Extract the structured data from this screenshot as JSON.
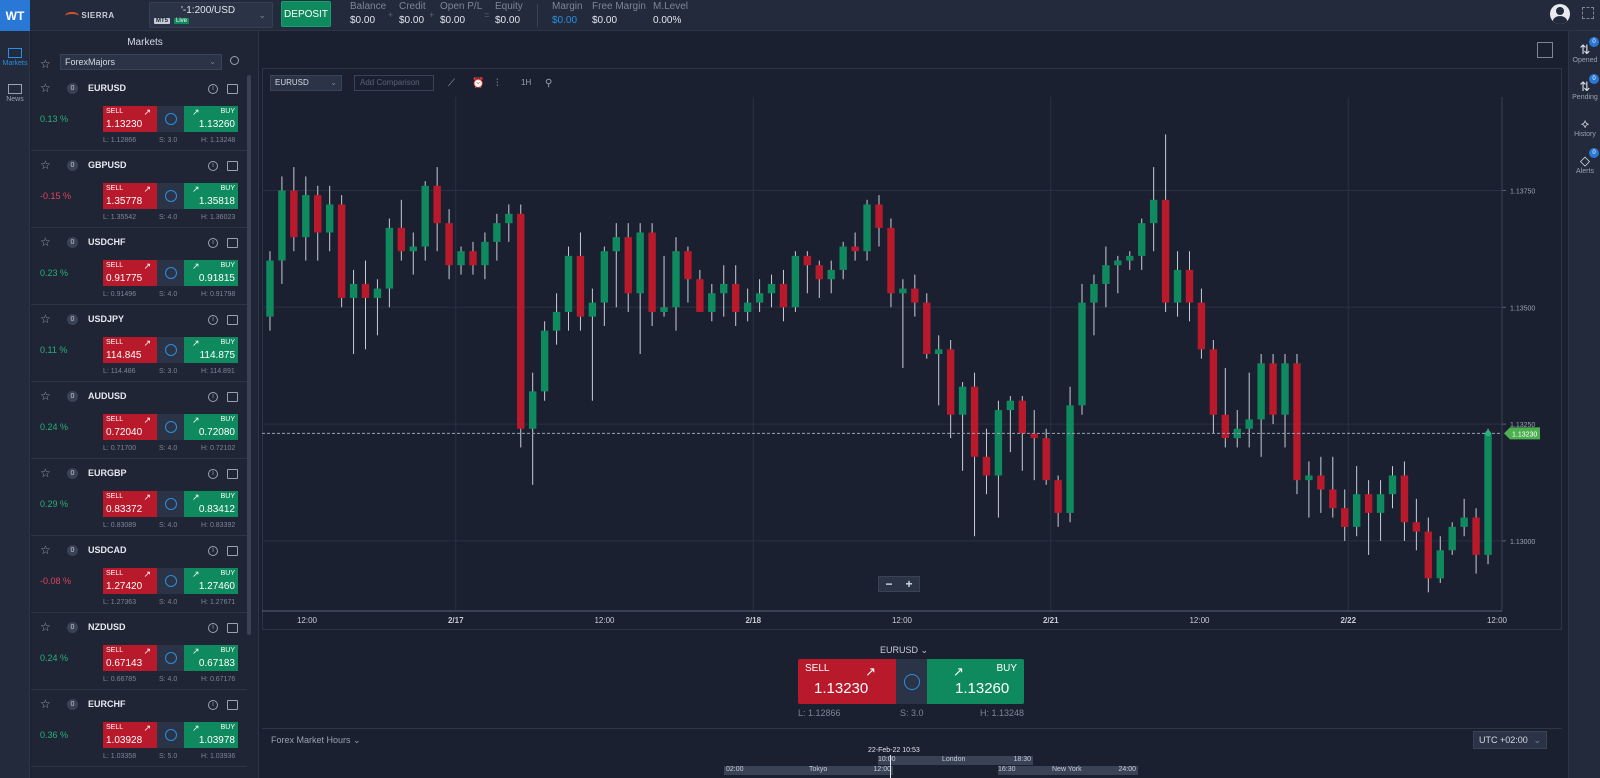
{
  "topbar": {
    "logo": "WT",
    "brand": "SIERRA",
    "account": {
      "name": "'-1:200/USD",
      "badge_type": "MT5",
      "badge_status": "Live"
    },
    "deposit_label": "DEPOSIT",
    "stats": [
      {
        "label": "Balance",
        "value": "$0.00"
      },
      {
        "label": "Credit",
        "value": "$0.00"
      },
      {
        "label": "Open P/L",
        "value": "$0.00"
      },
      {
        "label": "Equity",
        "value": "$0.00"
      },
      {
        "label": "Margin",
        "value": "$0.00"
      },
      {
        "label": "Free Margin",
        "value": "$0.00"
      },
      {
        "label": "M.Level",
        "value": "0.00%"
      }
    ],
    "sep_plus": "+",
    "sep_eq": "=",
    "icons": [
      "user-icon",
      "expand-icon"
    ]
  },
  "left_rail": [
    {
      "label": "Markets",
      "icon": "chart-icon"
    },
    {
      "label": "News",
      "icon": "news-icon"
    }
  ],
  "markets": {
    "title": "Markets",
    "filter": "ForexMajors",
    "instruments": [
      {
        "symbol": "EURUSD",
        "count": "0",
        "change": "0.13 %",
        "dir": "up",
        "sell": "1.13230",
        "buy": "1.13260",
        "low": "L: 1.12866",
        "spread": "S: 3.0",
        "high": "H: 1.13248"
      },
      {
        "symbol": "GBPUSD",
        "count": "0",
        "change": "-0.15 %",
        "dir": "dn",
        "sell": "1.35778",
        "buy": "1.35818",
        "low": "L: 1.35542",
        "spread": "S: 4.0",
        "high": "H: 1.36023"
      },
      {
        "symbol": "USDCHF",
        "count": "0",
        "change": "0.23 %",
        "dir": "up",
        "sell": "0.91775",
        "buy": "0.91815",
        "low": "L: 0.91496",
        "spread": "S: 4.0",
        "high": "H: 0.91798"
      },
      {
        "symbol": "USDJPY",
        "count": "0",
        "change": "0.11 %",
        "dir": "up",
        "sell": "114.845",
        "buy": "114.875",
        "low": "L: 114.486",
        "spread": "S: 3.0",
        "high": "H: 114.891"
      },
      {
        "symbol": "AUDUSD",
        "count": "0",
        "change": "0.24 %",
        "dir": "up",
        "sell": "0.72040",
        "buy": "0.72080",
        "low": "L: 0.71700",
        "spread": "S: 4.0",
        "high": "H: 0.72102"
      },
      {
        "symbol": "EURGBP",
        "count": "0",
        "change": "0.29 %",
        "dir": "up",
        "sell": "0.83372",
        "buy": "0.83412",
        "low": "L: 0.83089",
        "spread": "S: 4.0",
        "high": "H: 0.83392"
      },
      {
        "symbol": "USDCAD",
        "count": "0",
        "change": "-0.08 %",
        "dir": "dn",
        "sell": "1.27420",
        "buy": "1.27460",
        "low": "L: 1.27363",
        "spread": "S: 4.0",
        "high": "H: 1.27671"
      },
      {
        "symbol": "NZDUSD",
        "count": "0",
        "change": "0.24 %",
        "dir": "up",
        "sell": "0.67143",
        "buy": "0.67183",
        "low": "L: 0.66785",
        "spread": "S: 4.0",
        "high": "H: 0.67176"
      },
      {
        "symbol": "EURCHF",
        "count": "0",
        "change": "0.36 %",
        "dir": "up",
        "sell": "1.03928",
        "buy": "1.03978",
        "low": "L: 1.03358",
        "spread": "S: 5.0",
        "high": "H: 1.03936"
      }
    ],
    "sell_label": "SELL",
    "buy_label": "BUY"
  },
  "chart_toolbar": {
    "symbol": "EURUSD",
    "comparison_placeholder": "Add Comparison",
    "timeframe": "1H"
  },
  "chart_data": {
    "type": "candlestick",
    "symbol": "EURUSD",
    "y_ticks": [
      "1.13750",
      "1.13500",
      "1.13250",
      "1.13000"
    ],
    "x_ticks": [
      "12:00",
      "2/17",
      "12:00",
      "2/18",
      "12:00",
      "2/21",
      "12:00",
      "2/22",
      "12:00"
    ],
    "current_price": "1.13230",
    "ylim": [
      1.1285,
      1.1395
    ],
    "candles": [
      [
        1.1348,
        1.1362,
        1.1345,
        1.136
      ],
      [
        1.136,
        1.1378,
        1.1355,
        1.1375
      ],
      [
        1.1375,
        1.138,
        1.1362,
        1.1365
      ],
      [
        1.1365,
        1.1378,
        1.136,
        1.1374
      ],
      [
        1.1374,
        1.1376,
        1.136,
        1.1366
      ],
      [
        1.1366,
        1.1376,
        1.1362,
        1.1372
      ],
      [
        1.1372,
        1.1374,
        1.135,
        1.1352
      ],
      [
        1.1352,
        1.1358,
        1.134,
        1.1355
      ],
      [
        1.1355,
        1.136,
        1.1341,
        1.1352
      ],
      [
        1.1352,
        1.1356,
        1.1344,
        1.1354
      ],
      [
        1.1354,
        1.1369,
        1.135,
        1.1367
      ],
      [
        1.1367,
        1.1373,
        1.136,
        1.1362
      ],
      [
        1.1362,
        1.1366,
        1.1357,
        1.1363
      ],
      [
        1.1363,
        1.1377,
        1.136,
        1.1376
      ],
      [
        1.1376,
        1.138,
        1.1362,
        1.1368
      ],
      [
        1.1368,
        1.1371,
        1.1356,
        1.1359
      ],
      [
        1.1359,
        1.1363,
        1.1357,
        1.1362
      ],
      [
        1.1362,
        1.1364,
        1.1357,
        1.1359
      ],
      [
        1.1359,
        1.1366,
        1.1356,
        1.1364
      ],
      [
        1.1364,
        1.137,
        1.136,
        1.1368
      ],
      [
        1.1368,
        1.1372,
        1.1364,
        1.137
      ],
      [
        1.137,
        1.1372,
        1.132,
        1.1324
      ],
      [
        1.1324,
        1.1336,
        1.1312,
        1.1332
      ],
      [
        1.1332,
        1.1347,
        1.133,
        1.1345
      ],
      [
        1.1345,
        1.1353,
        1.1342,
        1.1349
      ],
      [
        1.1349,
        1.1363,
        1.1345,
        1.1361
      ],
      [
        1.1361,
        1.1366,
        1.1345,
        1.1348
      ],
      [
        1.1348,
        1.1354,
        1.133,
        1.1351
      ],
      [
        1.1351,
        1.1363,
        1.1346,
        1.1362
      ],
      [
        1.1362,
        1.1368,
        1.135,
        1.1365
      ],
      [
        1.1365,
        1.1368,
        1.1349,
        1.1353
      ],
      [
        1.1353,
        1.1368,
        1.134,
        1.1366
      ],
      [
        1.1366,
        1.1368,
        1.1346,
        1.1349
      ],
      [
        1.1349,
        1.1361,
        1.1348,
        1.135
      ],
      [
        1.135,
        1.1365,
        1.1345,
        1.1362
      ],
      [
        1.1362,
        1.1363,
        1.1351,
        1.1356
      ],
      [
        1.1356,
        1.1358,
        1.1349,
        1.1349
      ],
      [
        1.1349,
        1.1355,
        1.1347,
        1.1353
      ],
      [
        1.1353,
        1.1359,
        1.1348,
        1.1355
      ],
      [
        1.1355,
        1.1359,
        1.1346,
        1.1349
      ],
      [
        1.1349,
        1.1354,
        1.1347,
        1.1351
      ],
      [
        1.1351,
        1.1356,
        1.1349,
        1.1353
      ],
      [
        1.1353,
        1.1357,
        1.135,
        1.1355
      ],
      [
        1.1355,
        1.1358,
        1.1347,
        1.135
      ],
      [
        1.135,
        1.1362,
        1.1349,
        1.1361
      ],
      [
        1.1361,
        1.1362,
        1.1353,
        1.1359
      ],
      [
        1.1359,
        1.136,
        1.1352,
        1.1356
      ],
      [
        1.1356,
        1.136,
        1.1353,
        1.1358
      ],
      [
        1.1358,
        1.1364,
        1.1356,
        1.1363
      ],
      [
        1.1363,
        1.1366,
        1.136,
        1.1362
      ],
      [
        1.1362,
        1.1373,
        1.136,
        1.1372
      ],
      [
        1.1372,
        1.1374,
        1.1363,
        1.1367
      ],
      [
        1.1367,
        1.1369,
        1.135,
        1.1353
      ],
      [
        1.1353,
        1.1356,
        1.1337,
        1.1354
      ],
      [
        1.1354,
        1.1357,
        1.1348,
        1.1351
      ],
      [
        1.1351,
        1.1353,
        1.1339,
        1.134
      ],
      [
        1.134,
        1.1344,
        1.1329,
        1.1341
      ],
      [
        1.1341,
        1.1343,
        1.1322,
        1.1327
      ],
      [
        1.1327,
        1.1334,
        1.1315,
        1.1333
      ],
      [
        1.1333,
        1.1336,
        1.1301,
        1.1318
      ],
      [
        1.1318,
        1.1324,
        1.131,
        1.1314
      ],
      [
        1.1314,
        1.133,
        1.1305,
        1.1328
      ],
      [
        1.1328,
        1.1331,
        1.1319,
        1.133
      ],
      [
        1.133,
        1.1331,
        1.1315,
        1.1323
      ],
      [
        1.1323,
        1.1328,
        1.1313,
        1.1322
      ],
      [
        1.1322,
        1.1324,
        1.1312,
        1.1313
      ],
      [
        1.1313,
        1.1314,
        1.1303,
        1.1306
      ],
      [
        1.1306,
        1.1333,
        1.1304,
        1.1329
      ],
      [
        1.1329,
        1.1355,
        1.1327,
        1.1351
      ],
      [
        1.1351,
        1.1357,
        1.1344,
        1.1355
      ],
      [
        1.1355,
        1.1363,
        1.135,
        1.1359
      ],
      [
        1.1359,
        1.1361,
        1.1353,
        1.136
      ],
      [
        1.136,
        1.1362,
        1.1358,
        1.1361
      ],
      [
        1.1361,
        1.1369,
        1.1358,
        1.1368
      ],
      [
        1.1368,
        1.138,
        1.1362,
        1.1373
      ],
      [
        1.1373,
        1.1387,
        1.1349,
        1.1351
      ],
      [
        1.1351,
        1.1362,
        1.1348,
        1.1358
      ],
      [
        1.1358,
        1.1362,
        1.1347,
        1.1351
      ],
      [
        1.1351,
        1.1354,
        1.1339,
        1.1341
      ],
      [
        1.1341,
        1.1343,
        1.1323,
        1.1327
      ],
      [
        1.1327,
        1.1337,
        1.132,
        1.1322
      ],
      [
        1.1322,
        1.1328,
        1.132,
        1.1324
      ],
      [
        1.1324,
        1.1336,
        1.132,
        1.1326
      ],
      [
        1.1326,
        1.134,
        1.1318,
        1.1338
      ],
      [
        1.1338,
        1.134,
        1.1325,
        1.1327
      ],
      [
        1.1327,
        1.134,
        1.132,
        1.1338
      ],
      [
        1.1338,
        1.134,
        1.131,
        1.1313
      ],
      [
        1.1313,
        1.1317,
        1.1305,
        1.1314
      ],
      [
        1.1314,
        1.1318,
        1.1306,
        1.1311
      ],
      [
        1.1311,
        1.1318,
        1.1305,
        1.1307
      ],
      [
        1.1307,
        1.1311,
        1.13,
        1.1303
      ],
      [
        1.1303,
        1.1316,
        1.1301,
        1.131
      ],
      [
        1.131,
        1.1313,
        1.1297,
        1.1306
      ],
      [
        1.1306,
        1.1313,
        1.13,
        1.131
      ],
      [
        1.131,
        1.1316,
        1.1307,
        1.1314
      ],
      [
        1.1314,
        1.1317,
        1.13,
        1.1304
      ],
      [
        1.1304,
        1.1309,
        1.1298,
        1.1302
      ],
      [
        1.1302,
        1.1305,
        1.1289,
        1.1292
      ],
      [
        1.1292,
        1.1301,
        1.1291,
        1.1298
      ],
      [
        1.1298,
        1.1304,
        1.1297,
        1.1303
      ],
      [
        1.1303,
        1.1309,
        1.1301,
        1.1305
      ],
      [
        1.1305,
        1.1307,
        1.1293,
        1.1297
      ],
      [
        1.1297,
        1.1324,
        1.1295,
        1.1323
      ]
    ]
  },
  "chart_controls": {
    "zoom_out": "−",
    "zoom_in": "+"
  },
  "ticket": {
    "symbol": "EURUSD",
    "sell_label": "SELL",
    "buy_label": "BUY",
    "sell": "1.13230",
    "buy": "1.13260",
    "low": "L: 1.12866",
    "spread": "S: 3.0",
    "high": "H: 1.13248"
  },
  "sessions": {
    "title": "Forex Market Hours",
    "timezone": "UTC +02:00",
    "now": "22-Feb-22 10:53",
    "tokyo": {
      "name": "Tokyo",
      "start": "02:00",
      "end": "12:00"
    },
    "london": {
      "name": "London",
      "start": "10:00",
      "end": "18:30"
    },
    "newyork": {
      "name": "New York",
      "start": "16:30",
      "end": "24:00"
    }
  },
  "right_rail": [
    {
      "label": "Opened",
      "badge": "0",
      "icon": "opened-icon"
    },
    {
      "label": "Pending",
      "badge": "0",
      "icon": "pending-icon"
    },
    {
      "label": "History",
      "badge": "",
      "icon": "history-icon"
    },
    {
      "label": "Alerts",
      "badge": "0",
      "icon": "alerts-icon"
    }
  ],
  "colors": {
    "up": "#0f8a5f",
    "down": "#b8192b",
    "accent": "#2a8fe0",
    "bg": "#1b2030"
  }
}
